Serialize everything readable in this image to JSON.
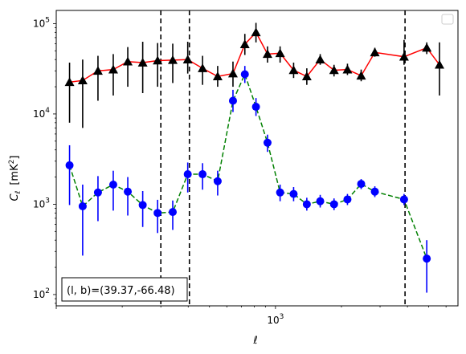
{
  "chart_data": {
    "type": "line",
    "xscale": "log",
    "yscale": "log",
    "xlim": [
      100,
      6800
    ],
    "ylim": [
      75,
      140000
    ],
    "xlabel": "ℓ",
    "ylabel_main": "C",
    "ylabel_sub": "ℓ",
    "ylabel_unit_pre": "[mK",
    "ylabel_unit_sup": "2",
    "ylabel_unit_post": "]",
    "x_major_ticks": [
      {
        "value": 1000,
        "base": "10",
        "exp": "3"
      }
    ],
    "y_major_ticks": [
      {
        "value": 100,
        "base": "10",
        "exp": "2"
      },
      {
        "value": 1000,
        "base": "10",
        "exp": "3"
      },
      {
        "value": 10000,
        "base": "10",
        "exp": "4"
      },
      {
        "value": 100000,
        "base": "10",
        "exp": "5"
      }
    ],
    "vlines": [
      300,
      405,
      3900
    ],
    "legend": "top-right (empty)",
    "annotation": "(l, b)=(39.37,-66.48)",
    "annotation_position": "bottom-left",
    "series": [
      {
        "marker": "triangle",
        "marker_color": "#000000",
        "line_color": "#ff0000",
        "line_style": "solid",
        "error_color": "#000000",
        "points": [
          {
            "x": 115,
            "y": 22500,
            "lo": 8000,
            "hi": 37000
          },
          {
            "x": 132,
            "y": 23500,
            "lo": 7000,
            "hi": 40000
          },
          {
            "x": 155,
            "y": 30000,
            "lo": 14000,
            "hi": 44000
          },
          {
            "x": 182,
            "y": 31000,
            "lo": 16000,
            "hi": 46000
          },
          {
            "x": 212,
            "y": 38000,
            "lo": 20000,
            "hi": 55000
          },
          {
            "x": 248,
            "y": 37000,
            "lo": 17000,
            "hi": 63000
          },
          {
            "x": 290,
            "y": 39000,
            "lo": 20000,
            "hi": 61000
          },
          {
            "x": 340,
            "y": 39500,
            "lo": 22000,
            "hi": 60000
          },
          {
            "x": 398,
            "y": 40000,
            "lo": 28000,
            "hi": 63000
          },
          {
            "x": 465,
            "y": 32000,
            "lo": 21000,
            "hi": 44000
          },
          {
            "x": 545,
            "y": 26000,
            "lo": 20000,
            "hi": 34000
          },
          {
            "x": 640,
            "y": 28000,
            "lo": 20000,
            "hi": 38000
          },
          {
            "x": 725,
            "y": 59000,
            "lo": 45000,
            "hi": 77000
          },
          {
            "x": 815,
            "y": 80000,
            "lo": 62000,
            "hi": 102000
          },
          {
            "x": 920,
            "y": 46000,
            "lo": 37000,
            "hi": 56000
          },
          {
            "x": 1050,
            "y": 47000,
            "lo": 37000,
            "hi": 56000
          },
          {
            "x": 1210,
            "y": 30500,
            "lo": 25000,
            "hi": 37000
          },
          {
            "x": 1390,
            "y": 26000,
            "lo": 21000,
            "hi": 32000
          },
          {
            "x": 1600,
            "y": 40000,
            "lo": 35000,
            "hi": 46000
          },
          {
            "x": 1850,
            "y": 30500,
            "lo": 26000,
            "hi": 35000
          },
          {
            "x": 2130,
            "y": 31000,
            "lo": 27000,
            "hi": 36000
          },
          {
            "x": 2460,
            "y": 26500,
            "lo": 23000,
            "hi": 31000
          },
          {
            "x": 2840,
            "y": 48000,
            "lo": 43000,
            "hi": 54000
          },
          {
            "x": 3860,
            "y": 43000,
            "lo": 35000,
            "hi": 66000
          },
          {
            "x": 4900,
            "y": 54000,
            "lo": 46000,
            "hi": 62000
          },
          {
            "x": 5600,
            "y": 35000,
            "lo": 16000,
            "hi": 62000
          }
        ]
      },
      {
        "marker": "circle",
        "marker_color": "#0000ff",
        "line_color": "#008000",
        "line_style": "dashed",
        "error_color": "#0000ff",
        "points": [
          {
            "x": 115,
            "y": 2700,
            "lo": 980,
            "hi": 4500
          },
          {
            "x": 132,
            "y": 950,
            "lo": 270,
            "hi": 1650
          },
          {
            "x": 155,
            "y": 1350,
            "lo": 650,
            "hi": 2050
          },
          {
            "x": 182,
            "y": 1650,
            "lo": 850,
            "hi": 2350
          },
          {
            "x": 212,
            "y": 1380,
            "lo": 750,
            "hi": 2000
          },
          {
            "x": 248,
            "y": 980,
            "lo": 560,
            "hi": 1400
          },
          {
            "x": 290,
            "y": 800,
            "lo": 480,
            "hi": 1120
          },
          {
            "x": 340,
            "y": 820,
            "lo": 520,
            "hi": 1100
          },
          {
            "x": 398,
            "y": 2150,
            "lo": 1350,
            "hi": 2900
          },
          {
            "x": 465,
            "y": 2150,
            "lo": 1450,
            "hi": 2850
          },
          {
            "x": 545,
            "y": 1800,
            "lo": 1250,
            "hi": 2350
          },
          {
            "x": 640,
            "y": 14000,
            "lo": 10500,
            "hi": 18500
          },
          {
            "x": 725,
            "y": 27500,
            "lo": 22000,
            "hi": 34000
          },
          {
            "x": 815,
            "y": 12000,
            "lo": 9500,
            "hi": 15000
          },
          {
            "x": 920,
            "y": 4800,
            "lo": 3800,
            "hi": 5900
          },
          {
            "x": 1050,
            "y": 1350,
            "lo": 1080,
            "hi": 1650
          },
          {
            "x": 1210,
            "y": 1300,
            "lo": 1080,
            "hi": 1550
          },
          {
            "x": 1390,
            "y": 1000,
            "lo": 850,
            "hi": 1180
          },
          {
            "x": 1600,
            "y": 1080,
            "lo": 920,
            "hi": 1270
          },
          {
            "x": 1850,
            "y": 1000,
            "lo": 860,
            "hi": 1160
          },
          {
            "x": 2130,
            "y": 1130,
            "lo": 980,
            "hi": 1300
          },
          {
            "x": 2460,
            "y": 1680,
            "lo": 1470,
            "hi": 1900
          },
          {
            "x": 2840,
            "y": 1380,
            "lo": 1200,
            "hi": 1580
          },
          {
            "x": 3860,
            "y": 1130,
            "lo": 980,
            "hi": 1300
          },
          {
            "x": 4900,
            "y": 250,
            "lo": 105,
            "hi": 400
          }
        ]
      }
    ]
  }
}
